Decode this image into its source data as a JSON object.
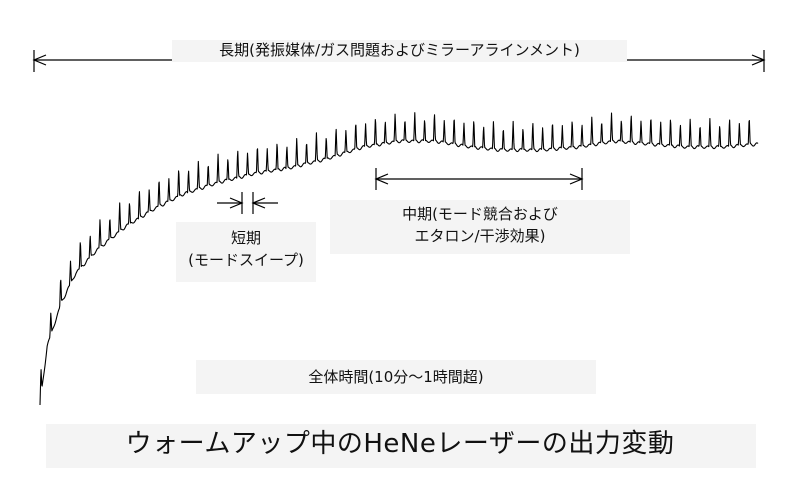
{
  "caption": "ウォームアップ中のHeNeレーザーの出力変動",
  "chart_data": {
    "type": "line",
    "title": "ウォームアップ中のHeNeレーザーの出力変動",
    "xlabel": "",
    "ylabel": "",
    "annotations": {
      "long_term": "長期(発振媒体/ガス問題およびミラーアラインメント)",
      "mid_term_line1": "中期(モード競合および",
      "mid_term_line2": "エタロン/干渉効果)",
      "short_term_line1": "短期",
      "short_term_line2": "(モードスイープ)",
      "total_time": "全体時間(10分～1時間超)"
    },
    "series": [
      {
        "baseline_x": [
          0,
          1,
          3,
          5,
          8,
          12,
          16,
          20,
          25,
          30,
          35,
          40,
          45,
          50,
          55,
          60,
          64,
          70,
          75,
          80,
          85,
          90,
          95,
          100
        ],
        "baseline_y": [
          0,
          20,
          35,
          45,
          53,
          61,
          67,
          72,
          76,
          79,
          81,
          84,
          88,
          90,
          90,
          88,
          87,
          87,
          88,
          90,
          89,
          88,
          88,
          89
        ],
        "mode_sweep_period": 1.37,
        "peak_height": [
          10,
          8
        ]
      }
    ],
    "grid": false,
    "legend": "none"
  }
}
